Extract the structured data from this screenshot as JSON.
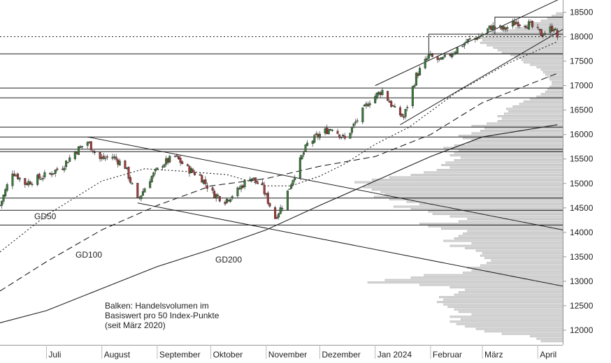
{
  "chart_data": {
    "type": "candlestick",
    "title": "",
    "xlabel": "",
    "ylabel": "",
    "ylim": [
      11700,
      18750
    ],
    "y_ticks": [
      12000,
      12500,
      13000,
      13500,
      14000,
      14500,
      15000,
      15500,
      16000,
      16500,
      17000,
      17500,
      18000,
      18500
    ],
    "y_tick_labels": [
      "12000",
      "12500",
      "13000",
      "13500",
      "14000",
      "14500",
      "15000",
      "15500",
      "16000",
      "16500",
      "17000",
      "17500",
      "18000",
      "18500"
    ],
    "x_range": [
      "2023-06-05",
      "2024-04-15"
    ],
    "x_ticks": [
      {
        "date": "2023-07-01",
        "label": "Juli"
      },
      {
        "date": "2023-08-01",
        "label": "August"
      },
      {
        "date": "2023-09-01",
        "label": "September"
      },
      {
        "date": "2023-10-01",
        "label": "Oktober"
      },
      {
        "date": "2023-11-01",
        "label": "November"
      },
      {
        "date": "2023-12-01",
        "label": "Dezember"
      },
      {
        "date": "2024-01-01",
        "label": "Jan 2024"
      },
      {
        "date": "2024-02-01",
        "label": "Februar"
      },
      {
        "date": "2024-03-01",
        "label": "März"
      },
      {
        "date": "2024-04-01",
        "label": "April"
      }
    ],
    "close_key_points": [
      [
        "2023-06-05",
        14550
      ],
      [
        "2023-06-12",
        15250
      ],
      [
        "2023-06-19",
        15000
      ],
      [
        "2023-06-26",
        15100
      ],
      [
        "2023-07-03",
        15200
      ],
      [
        "2023-07-10",
        15350
      ],
      [
        "2023-07-17",
        15650
      ],
      [
        "2023-07-24",
        15850
      ],
      [
        "2023-07-31",
        15500
      ],
      [
        "2023-08-07",
        15550
      ],
      [
        "2023-08-14",
        15350
      ],
      [
        "2023-08-21",
        14650
      ],
      [
        "2023-08-28",
        15100
      ],
      [
        "2023-09-04",
        15400
      ],
      [
        "2023-09-11",
        15550
      ],
      [
        "2023-09-18",
        15300
      ],
      [
        "2023-09-25",
        15150
      ],
      [
        "2023-10-02",
        14800
      ],
      [
        "2023-10-09",
        14650
      ],
      [
        "2023-10-16",
        14850
      ],
      [
        "2023-10-23",
        15150
      ],
      [
        "2023-10-30",
        14900
      ],
      [
        "2023-11-06",
        14300
      ],
      [
        "2023-11-10",
        14550
      ],
      [
        "2023-11-17",
        15200
      ],
      [
        "2023-11-24",
        15800
      ],
      [
        "2023-12-01",
        16000
      ],
      [
        "2023-12-08",
        16150
      ],
      [
        "2023-12-15",
        15900
      ],
      [
        "2023-12-22",
        16300
      ],
      [
        "2023-12-29",
        16700
      ],
      [
        "2024-01-05",
        16900
      ],
      [
        "2024-01-12",
        16500
      ],
      [
        "2024-01-17",
        16350
      ],
      [
        "2024-01-24",
        17200
      ],
      [
        "2024-01-31",
        17600
      ],
      [
        "2024-02-07",
        17500
      ],
      [
        "2024-02-14",
        17700
      ],
      [
        "2024-02-21",
        17900
      ],
      [
        "2024-02-28",
        18000
      ],
      [
        "2024-03-06",
        18200
      ],
      [
        "2024-03-13",
        18150
      ],
      [
        "2024-03-20",
        18300
      ],
      [
        "2024-03-27",
        18250
      ],
      [
        "2024-04-03",
        18050
      ],
      [
        "2024-04-10",
        18200
      ],
      [
        "2024-04-12",
        18000
      ]
    ],
    "moving_averages": [
      {
        "name": "GD50",
        "style": "dotted",
        "values": [
          [
            "2023-06-05",
            13600
          ],
          [
            "2023-07-01",
            14350
          ],
          [
            "2023-08-01",
            15050
          ],
          [
            "2023-08-25",
            15300
          ],
          [
            "2023-09-15",
            15250
          ],
          [
            "2023-10-10",
            15180
          ],
          [
            "2023-11-01",
            14950
          ],
          [
            "2023-11-15",
            14950
          ],
          [
            "2023-12-01",
            15150
          ],
          [
            "2023-12-15",
            15400
          ],
          [
            "2024-01-01",
            15800
          ],
          [
            "2024-01-20",
            16150
          ],
          [
            "2024-02-15",
            16850
          ],
          [
            "2024-03-15",
            17450
          ],
          [
            "2024-04-12",
            17900
          ]
        ]
      },
      {
        "name": "GD100",
        "style": "dashed",
        "values": [
          [
            "2023-06-05",
            12800
          ],
          [
            "2023-07-01",
            13400
          ],
          [
            "2023-08-01",
            14050
          ],
          [
            "2023-09-01",
            14550
          ],
          [
            "2023-10-01",
            14950
          ],
          [
            "2023-11-01",
            15100
          ],
          [
            "2023-12-01",
            15350
          ],
          [
            "2024-01-01",
            15550
          ],
          [
            "2024-02-01",
            16000
          ],
          [
            "2024-03-01",
            16650
          ],
          [
            "2024-04-12",
            17250
          ]
        ]
      },
      {
        "name": "GD200",
        "style": "solid",
        "values": [
          [
            "2023-06-05",
            12150
          ],
          [
            "2023-07-01",
            12400
          ],
          [
            "2023-08-01",
            12850
          ],
          [
            "2023-09-01",
            13300
          ],
          [
            "2023-10-01",
            13650
          ],
          [
            "2023-11-01",
            14050
          ],
          [
            "2023-12-01",
            14550
          ],
          [
            "2024-01-01",
            15050
          ],
          [
            "2024-02-01",
            15550
          ],
          [
            "2024-03-01",
            15950
          ],
          [
            "2024-04-12",
            16200
          ]
        ]
      }
    ],
    "horizontal_levels": [
      14150,
      14450,
      14700,
      15650,
      15700,
      15950,
      16150,
      16750,
      16950,
      17650
    ],
    "reference_level": 18000,
    "trend_lines": [
      {
        "from": [
          "2023-07-24",
          15950
        ],
        "to": [
          "2024-04-15",
          14050
        ]
      },
      {
        "from": [
          "2023-08-21",
          14600
        ],
        "to": [
          "2024-04-15",
          12900
        ]
      },
      {
        "from": [
          "2024-01-01",
          17000
        ],
        "to": [
          "2024-04-15",
          18800
        ]
      },
      {
        "from": [
          "2024-01-15",
          16200
        ],
        "to": [
          "2024-04-15",
          18150
        ]
      }
    ],
    "boxes": [
      {
        "x": [
          "2024-01-31",
          "2024-04-15"
        ],
        "y": [
          17650,
          18050
        ]
      },
      {
        "x": [
          "2024-03-08",
          "2024-04-15"
        ],
        "y": [
          18050,
          18400
        ]
      }
    ],
    "volume_profile": {
      "bin_size": 50,
      "note": "relative volume 0-1 per 50-point price bin",
      "bins": [
        [
          11750,
          0.1
        ],
        [
          11800,
          0.12
        ],
        [
          11850,
          0.15
        ],
        [
          11900,
          0.28
        ],
        [
          11950,
          0.36
        ],
        [
          12000,
          0.4
        ],
        [
          12050,
          0.45
        ],
        [
          12100,
          0.49
        ],
        [
          12150,
          0.52
        ],
        [
          12200,
          0.47
        ],
        [
          12250,
          0.52
        ],
        [
          12300,
          0.42
        ],
        [
          12350,
          0.48
        ],
        [
          12400,
          0.5
        ],
        [
          12450,
          0.53
        ],
        [
          12500,
          0.55
        ],
        [
          12550,
          0.58
        ],
        [
          12600,
          0.55
        ],
        [
          12650,
          0.57
        ],
        [
          12700,
          0.5
        ],
        [
          12750,
          0.48
        ],
        [
          12800,
          0.45
        ],
        [
          12850,
          0.52
        ],
        [
          12900,
          0.66
        ],
        [
          12950,
          0.9
        ],
        [
          13000,
          0.82
        ],
        [
          13050,
          0.7
        ],
        [
          13100,
          0.64
        ],
        [
          13150,
          0.46
        ],
        [
          13200,
          0.42
        ],
        [
          13250,
          0.44
        ],
        [
          13300,
          0.38
        ],
        [
          13350,
          0.35
        ],
        [
          13400,
          0.33
        ],
        [
          13450,
          0.36
        ],
        [
          13500,
          0.38
        ],
        [
          13550,
          0.37
        ],
        [
          13600,
          0.4
        ],
        [
          13650,
          0.45
        ],
        [
          13700,
          0.52
        ],
        [
          13750,
          0.42
        ],
        [
          13800,
          0.55
        ],
        [
          13850,
          0.5
        ],
        [
          13900,
          0.48
        ],
        [
          13950,
          0.46
        ],
        [
          14000,
          0.44
        ],
        [
          14050,
          0.56
        ],
        [
          14100,
          0.62
        ],
        [
          14150,
          0.66
        ],
        [
          14200,
          0.48
        ],
        [
          14250,
          0.44
        ],
        [
          14300,
          0.52
        ],
        [
          14350,
          0.6
        ],
        [
          14400,
          0.62
        ],
        [
          14450,
          0.7
        ],
        [
          14500,
          0.78
        ],
        [
          14550,
          0.66
        ],
        [
          14600,
          0.72
        ],
        [
          14650,
          0.8
        ],
        [
          14700,
          0.87
        ],
        [
          14750,
          0.82
        ],
        [
          14800,
          0.84
        ],
        [
          14850,
          0.88
        ],
        [
          14900,
          0.92
        ],
        [
          14950,
          0.9
        ],
        [
          15000,
          0.96
        ],
        [
          15050,
          0.88
        ],
        [
          15100,
          0.8
        ],
        [
          15150,
          0.7
        ],
        [
          15200,
          0.64
        ],
        [
          15250,
          0.58
        ],
        [
          15300,
          0.52
        ],
        [
          15350,
          0.56
        ],
        [
          15400,
          0.54
        ],
        [
          15450,
          0.5
        ],
        [
          15500,
          0.47
        ],
        [
          15550,
          0.52
        ],
        [
          15600,
          0.5
        ],
        [
          15650,
          0.48
        ],
        [
          15700,
          0.55
        ],
        [
          15750,
          0.5
        ],
        [
          15800,
          0.44
        ],
        [
          15850,
          0.42
        ],
        [
          15900,
          0.46
        ],
        [
          15950,
          0.48
        ],
        [
          16000,
          0.42
        ],
        [
          16050,
          0.38
        ],
        [
          16100,
          0.36
        ],
        [
          16150,
          0.42
        ],
        [
          16200,
          0.35
        ],
        [
          16250,
          0.3
        ],
        [
          16300,
          0.28
        ],
        [
          16350,
          0.3
        ],
        [
          16400,
          0.27
        ],
        [
          16450,
          0.25
        ],
        [
          16500,
          0.26
        ],
        [
          16550,
          0.23
        ],
        [
          16600,
          0.2
        ],
        [
          16650,
          0.18
        ],
        [
          16700,
          0.15
        ],
        [
          16750,
          0.12
        ],
        [
          16800,
          0.1
        ],
        [
          16850,
          0.08
        ],
        [
          16900,
          0.07
        ],
        [
          16950,
          0.06
        ],
        [
          17000,
          0.05
        ],
        [
          17050,
          0.05
        ],
        [
          17100,
          0.06
        ],
        [
          17150,
          0.07
        ],
        [
          17200,
          0.08
        ],
        [
          17250,
          0.09
        ],
        [
          17300,
          0.1
        ],
        [
          17350,
          0.12
        ],
        [
          17400,
          0.15
        ],
        [
          17450,
          0.18
        ],
        [
          17500,
          0.19
        ],
        [
          17550,
          0.22
        ],
        [
          17600,
          0.24
        ],
        [
          17650,
          0.28
        ],
        [
          17700,
          0.3
        ],
        [
          17750,
          0.32
        ],
        [
          17800,
          0.35
        ],
        [
          17850,
          0.38
        ],
        [
          17900,
          0.37
        ],
        [
          17950,
          0.4
        ],
        [
          18000,
          0.36
        ],
        [
          18050,
          0.33
        ],
        [
          18100,
          0.28
        ],
        [
          18150,
          0.22
        ],
        [
          18200,
          0.18
        ],
        [
          18250,
          0.14
        ],
        [
          18300,
          0.1
        ],
        [
          18350,
          0.07
        ],
        [
          18400,
          0.05
        ],
        [
          18450,
          0.03
        ]
      ]
    },
    "annotations": {
      "gd50": "GD50",
      "gd100": "GD100",
      "gd200": "GD200",
      "volume_note": [
        "Balken: Handelsvolumen im",
        "Basiswert pro 50 Index-Punkte",
        "(seit März 2020)"
      ]
    },
    "colors": {
      "up": "#3a7a3a",
      "down": "#a33a3a",
      "volume_fill": "#d6d6d6",
      "volume_stroke": "#b6b6b6",
      "lines": "#1f1f1f",
      "axis_text": "#222222"
    }
  }
}
